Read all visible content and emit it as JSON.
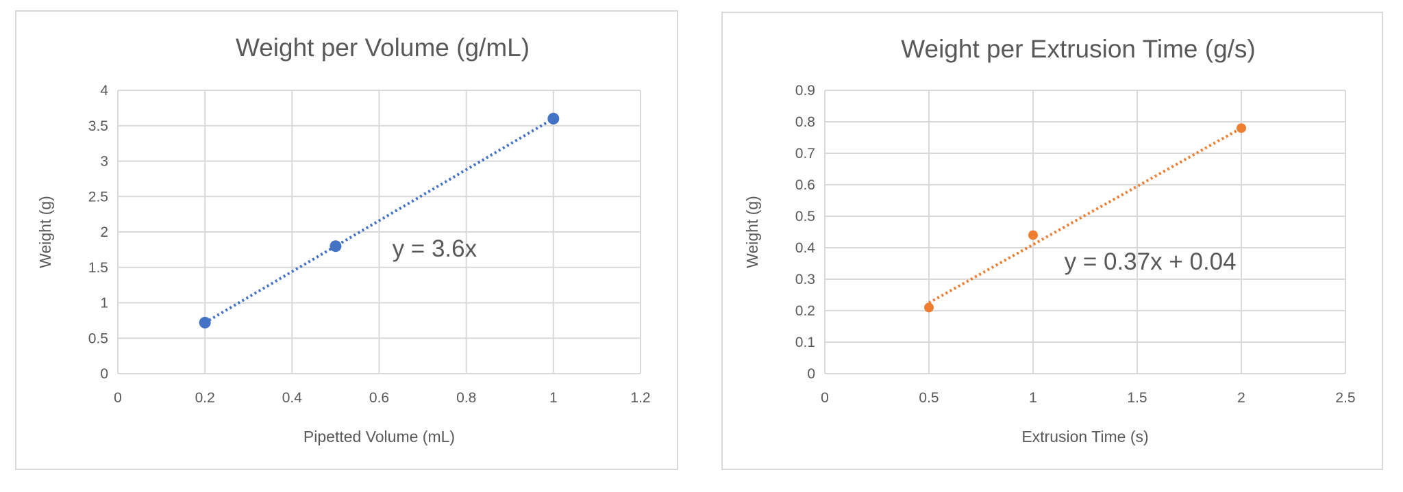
{
  "chart_data": [
    {
      "type": "scatter",
      "title": "Weight per Volume (g/mL)",
      "xlabel": "Pipetted Volume (mL)",
      "ylabel": "Weight (g)",
      "xlim": [
        0,
        1.2
      ],
      "ylim": [
        0,
        4
      ],
      "xticks": [
        0,
        0.2,
        0.4,
        0.6,
        0.8,
        1,
        1.2
      ],
      "yticks": [
        0,
        0.5,
        1,
        1.5,
        2,
        2.5,
        3,
        3.5,
        4
      ],
      "grid": true,
      "color": "#4472C4",
      "points": [
        [
          0.2,
          0.72
        ],
        [
          0.5,
          1.8
        ],
        [
          1,
          3.6
        ]
      ],
      "trendline": {
        "slope": 3.6,
        "intercept": 0,
        "label": "y = 3.6x",
        "label_at": [
          0.63,
          1.65
        ]
      }
    },
    {
      "type": "scatter",
      "title": "Weight per Extrusion Time (g/s)",
      "xlabel": "Extrusion Time (s)",
      "ylabel": "Weight (g)",
      "xlim": [
        0,
        2.5
      ],
      "ylim": [
        0,
        0.9
      ],
      "xticks": [
        0,
        0.5,
        1,
        1.5,
        2,
        2.5
      ],
      "yticks": [
        0,
        0.1,
        0.2,
        0.3,
        0.4,
        0.5,
        0.6,
        0.7,
        0.8,
        0.9
      ],
      "grid": true,
      "color": "#ED7D31",
      "points": [
        [
          0.5,
          0.21
        ],
        [
          1,
          0.44
        ],
        [
          2,
          0.78
        ]
      ],
      "trendline": {
        "slope": 0.37,
        "intercept": 0.04,
        "label": "y = 0.37x + 0.04",
        "label_at": [
          1.15,
          0.33
        ]
      }
    }
  ]
}
